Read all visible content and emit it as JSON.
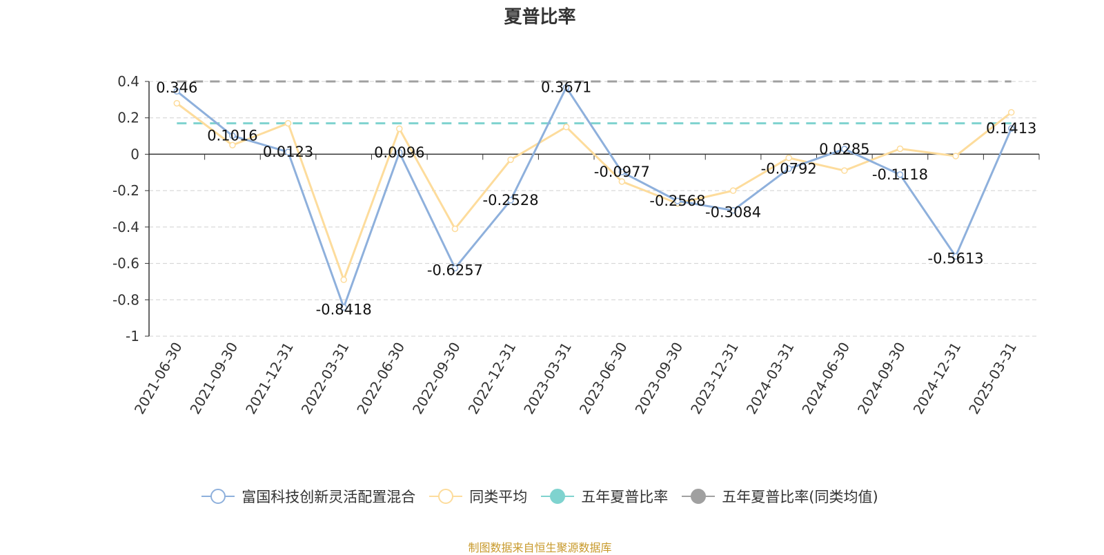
{
  "chart_data": {
    "type": "line",
    "title": "夏普比率",
    "categories": [
      "2021-06-30",
      "2021-09-30",
      "2021-12-31",
      "2022-03-31",
      "2022-06-30",
      "2022-09-30",
      "2022-12-31",
      "2023-03-31",
      "2023-06-30",
      "2023-09-30",
      "2023-12-31",
      "2024-03-31",
      "2024-06-30",
      "2024-09-30",
      "2024-12-31",
      "2025-03-31"
    ],
    "ylim": [
      -1,
      0.4
    ],
    "yticks": [
      0.4,
      0.2,
      0,
      -0.2,
      -0.4,
      -0.6,
      -0.8,
      -1
    ],
    "ytick_labels": [
      "0.4",
      "0.2",
      "0",
      "-0.2",
      "-0.4",
      "-0.6",
      "-0.8",
      "-1"
    ],
    "grid": true,
    "legend_position": "bottom",
    "series": [
      {
        "name": "富国科技创新灵活配置混合",
        "color": "#8eb0dc",
        "values": [
          0.346,
          0.1016,
          0.0123,
          -0.8418,
          0.0096,
          -0.6257,
          -0.2528,
          0.3671,
          -0.0977,
          -0.2568,
          -0.3084,
          -0.0792,
          0.0285,
          -0.1118,
          -0.5613,
          0.1413
        ],
        "labels": [
          "0.346",
          "0.1016",
          "0.0123",
          "-0.8418",
          "0.0096",
          "-0.6257",
          "-0.2528",
          "0.3671",
          "-0.0977",
          "-0.2568",
          "-0.3084",
          "-0.0792",
          "0.0285",
          "-0.1118",
          "-0.5613",
          "0.1413"
        ]
      },
      {
        "name": "同类平均",
        "color": "#fddc9c",
        "values": [
          0.28,
          0.05,
          0.17,
          -0.69,
          0.14,
          -0.41,
          -0.03,
          0.15,
          -0.15,
          -0.27,
          -0.2,
          -0.02,
          -0.09,
          0.03,
          -0.01,
          0.23
        ]
      },
      {
        "name": "五年夏普比率",
        "color": "#7fd3cf",
        "constant": 0.17,
        "style": "dashed"
      },
      {
        "name": "五年夏普比率(同类均值)",
        "color": "#a0a0a0",
        "constant": 0.4,
        "style": "dashed"
      }
    ]
  },
  "legend": {
    "items": [
      "富国科技创新灵活配置混合",
      "同类平均",
      "五年夏普比率",
      "五年夏普比率(同类均值)"
    ]
  },
  "source_note": "制图数据来自恒生聚源数据库"
}
